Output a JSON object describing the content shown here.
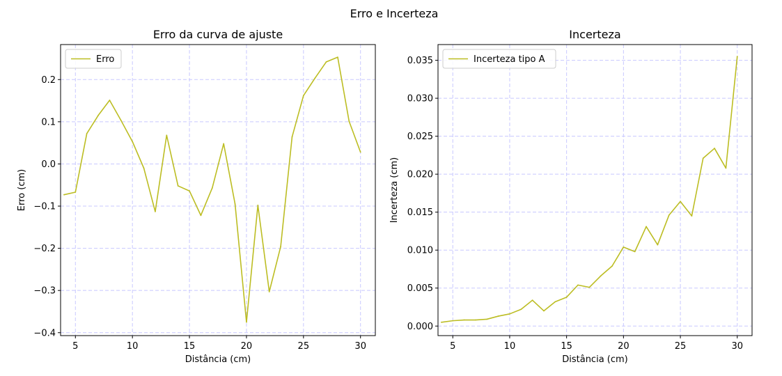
{
  "suptitle": "Erro e Incerteza",
  "colors": {
    "line": "#bcbd22",
    "grid": "#c8c8ff"
  },
  "chart_data": [
    {
      "type": "line",
      "title": "Erro da curva de ajuste",
      "xlabel": "Distância (cm)",
      "ylabel": "Erro (cm)",
      "xlim": [
        3.7,
        31.3
      ],
      "ylim": [
        -0.407,
        0.283
      ],
      "xticks": [
        5,
        10,
        15,
        20,
        25,
        30
      ],
      "yticks": [
        -0.4,
        -0.3,
        -0.2,
        -0.1,
        0.0,
        0.1,
        0.2
      ],
      "xtick_labels": [
        "5",
        "10",
        "15",
        "20",
        "25",
        "30"
      ],
      "ytick_labels": [
        "−0.4",
        "−0.3",
        "−0.2",
        "−0.1",
        "0.0",
        "0.1",
        "0.2"
      ],
      "grid": true,
      "legend_position": "upper-left",
      "series": [
        {
          "name": "Erro",
          "x": [
            4,
            5,
            6,
            7,
            8,
            9,
            10,
            11,
            12,
            13,
            14,
            15,
            16,
            17,
            18,
            19,
            20,
            21,
            22,
            23,
            24,
            25,
            26,
            27,
            28,
            29,
            30
          ],
          "y": [
            -0.073,
            -0.067,
            0.072,
            0.115,
            0.151,
            0.103,
            0.053,
            -0.01,
            -0.113,
            0.068,
            -0.052,
            -0.064,
            -0.122,
            -0.057,
            0.048,
            -0.095,
            -0.375,
            -0.098,
            -0.303,
            -0.196,
            0.064,
            0.162,
            0.203,
            0.242,
            0.253,
            0.101,
            0.028
          ]
        }
      ]
    },
    {
      "type": "line",
      "title": "Incerteza",
      "xlabel": "Distância (cm)",
      "ylabel": "Incerteza (cm)",
      "xlim": [
        3.7,
        31.3
      ],
      "ylim": [
        -0.00126,
        0.03707
      ],
      "xticks": [
        5,
        10,
        15,
        20,
        25,
        30
      ],
      "yticks": [
        0.0,
        0.005,
        0.01,
        0.015,
        0.02,
        0.025,
        0.03,
        0.035
      ],
      "xtick_labels": [
        "5",
        "10",
        "15",
        "20",
        "25",
        "30"
      ],
      "ytick_labels": [
        "0.000",
        "0.005",
        "0.010",
        "0.015",
        "0.020",
        "0.025",
        "0.030",
        "0.035"
      ],
      "grid": true,
      "legend_position": "upper-left",
      "series": [
        {
          "name": "Incerteza tipo A",
          "x": [
            4,
            5,
            6,
            7,
            8,
            9,
            10,
            11,
            12,
            13,
            14,
            15,
            16,
            17,
            18,
            19,
            20,
            21,
            22,
            23,
            24,
            25,
            26,
            27,
            28,
            29,
            30
          ],
          "y": [
            0.0005,
            0.0007,
            0.0008,
            0.0008,
            0.0009,
            0.0013,
            0.0016,
            0.0022,
            0.0034,
            0.002,
            0.0032,
            0.0038,
            0.0054,
            0.0051,
            0.0066,
            0.0079,
            0.0104,
            0.0098,
            0.0131,
            0.0107,
            0.0146,
            0.0164,
            0.0145,
            0.0221,
            0.0234,
            0.0208,
            0.0355
          ]
        }
      ]
    }
  ]
}
